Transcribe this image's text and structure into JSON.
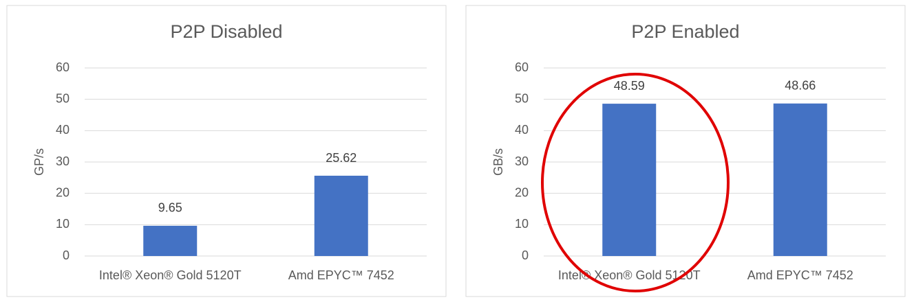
{
  "chart_data": [
    {
      "type": "bar",
      "title": "P2P Disabled",
      "ylabel": "GP/s",
      "categories": [
        "Intel® Xeon® Gold 5120T",
        "Amd EPYC™ 7452"
      ],
      "values": [
        9.65,
        25.62
      ],
      "color": "#4472c4",
      "ylim": [
        0,
        60
      ],
      "yticks": [
        0,
        10,
        20,
        30,
        40,
        50,
        60
      ],
      "grid": true
    },
    {
      "type": "bar",
      "title": "P2P Enabled",
      "ylabel": "GB/s",
      "categories": [
        "Intel® Xeon® Gold 5120T",
        "Amd EPYC™ 7452"
      ],
      "values": [
        48.59,
        48.66
      ],
      "color": "#4472c4",
      "ylim": [
        0,
        60
      ],
      "yticks": [
        0,
        10,
        20,
        30,
        40,
        50,
        60
      ],
      "grid": true
    }
  ]
}
